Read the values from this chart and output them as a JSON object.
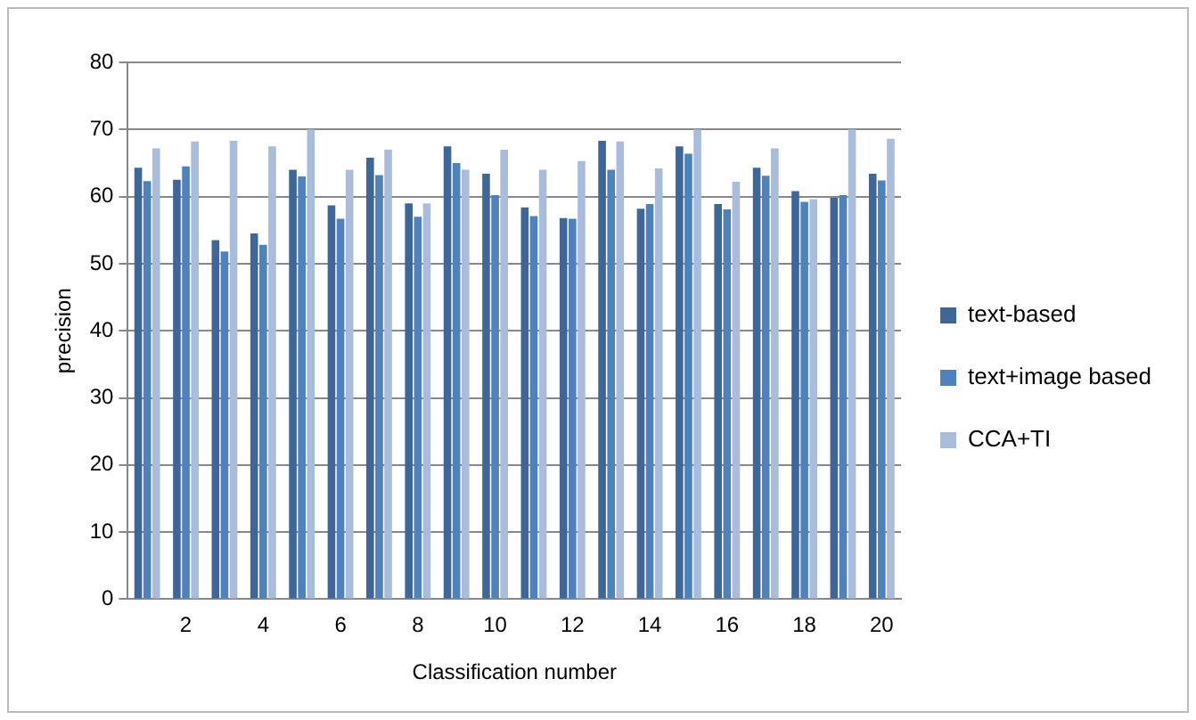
{
  "chart_data": {
    "type": "bar",
    "xlabel": "Classification number",
    "ylabel": "precision",
    "categories": [
      null,
      "2",
      null,
      "4",
      null,
      "6",
      null,
      "8",
      null,
      "10",
      null,
      "12",
      null,
      "14",
      null,
      "16",
      null,
      "18",
      null,
      "20"
    ],
    "series": [
      {
        "name": "text-based",
        "color": "#3f6698",
        "values": [
          64.3,
          62.5,
          53.5,
          54.5,
          64,
          58.7,
          65.8,
          59,
          67.5,
          63.4,
          58.4,
          56.8,
          68.3,
          58.2,
          67.5,
          58.9,
          64.3,
          60.8,
          59.8,
          63.4
        ]
      },
      {
        "name": "text+image based",
        "color": "#4f81bd",
        "values": [
          62.3,
          64.5,
          51.8,
          52.8,
          63,
          56.7,
          63.2,
          57,
          65,
          60.2,
          57.1,
          56.7,
          64,
          58.9,
          66.4,
          58.1,
          63.1,
          59.2,
          60.2,
          62.4
        ]
      },
      {
        "name": "CCA+TI",
        "color": "#a9bcdc",
        "values": [
          67.2,
          68.2,
          68.3,
          67.5,
          70,
          64,
          67,
          59,
          64,
          67,
          64,
          65.3,
          68.2,
          64.2,
          70,
          62.2,
          67.2,
          59.6,
          70,
          68.6
        ]
      }
    ],
    "ylim": [
      0,
      80
    ],
    "yticks": [
      0,
      10,
      20,
      30,
      40,
      50,
      60,
      70,
      80
    ],
    "grid": "y",
    "legend": "right"
  }
}
